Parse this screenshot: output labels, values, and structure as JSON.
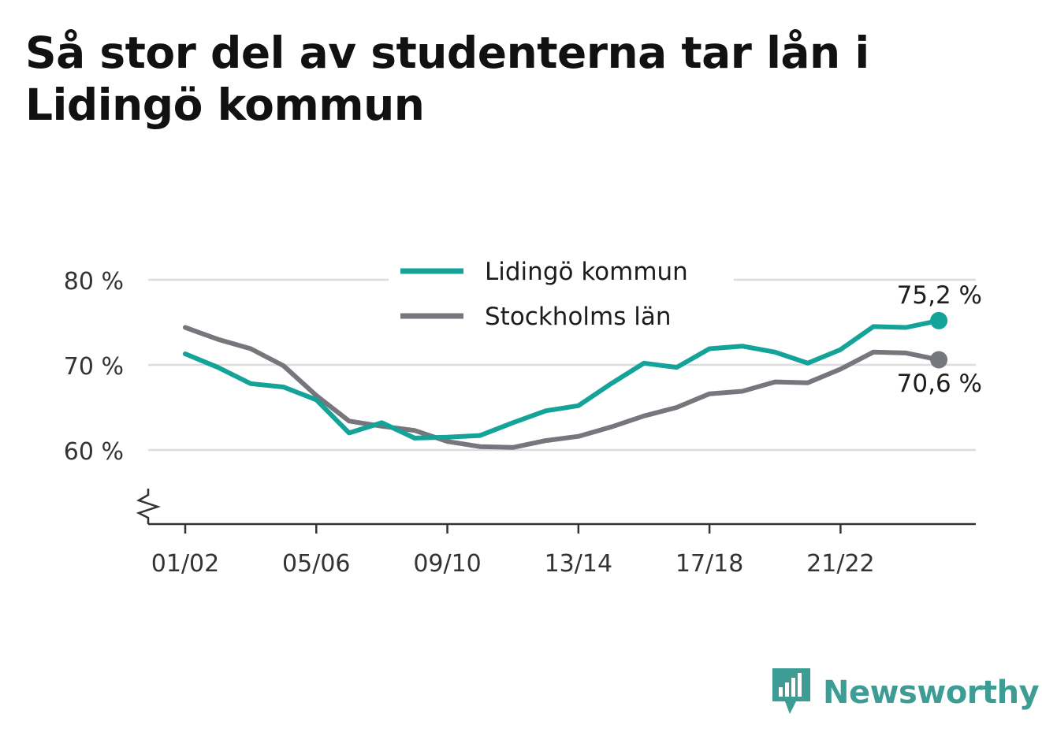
{
  "title": "Så stor del av studenterna tar lån i Lidingö kommun",
  "brand": {
    "name": "Newsworthy",
    "icon": "newsworthy-logo-icon"
  },
  "colors": {
    "lidingo": "#13a399",
    "stockholm": "#76767d",
    "grid": "#dcdcdc",
    "axis": "#333333",
    "brand": "#3d9d95"
  },
  "chart_data": {
    "type": "line",
    "x": [
      "01/02",
      "02/03",
      "03/04",
      "04/05",
      "05/06",
      "06/07",
      "07/08",
      "08/09",
      "09/10",
      "10/11",
      "11/12",
      "12/13",
      "13/14",
      "14/15",
      "15/16",
      "16/17",
      "17/18",
      "18/19",
      "19/20",
      "20/21",
      "21/22",
      "22/23",
      "23/24",
      "24/25"
    ],
    "xticks": [
      "01/02",
      "05/06",
      "09/10",
      "13/14",
      "17/18",
      "21/22"
    ],
    "yticks": [
      60,
      70,
      80
    ],
    "ytick_labels": [
      "60 %",
      "70 %",
      "80 %"
    ],
    "ylim": [
      51.3,
      80
    ],
    "y_axis_break": true,
    "grid": true,
    "legend": "top-center",
    "series": [
      {
        "name": "Lidingö kommun",
        "color": "#13a399",
        "values": [
          71.3,
          69.7,
          67.8,
          67.4,
          65.9,
          62.0,
          63.2,
          61.4,
          61.5,
          61.7,
          63.2,
          64.6,
          65.2,
          67.8,
          70.2,
          69.7,
          71.9,
          72.2,
          71.5,
          70.2,
          71.8,
          74.5,
          74.4,
          75.2
        ],
        "end_label": "75,2 %"
      },
      {
        "name": "Stockholms län",
        "color": "#76767d",
        "values": [
          74.4,
          73.0,
          71.9,
          69.9,
          66.4,
          63.4,
          62.8,
          62.3,
          61.0,
          60.4,
          60.3,
          61.1,
          61.6,
          62.7,
          64.0,
          65.0,
          66.6,
          66.9,
          68.0,
          67.9,
          69.5,
          71.5,
          71.4,
          70.6
        ],
        "end_label": "70,6 %"
      }
    ]
  }
}
